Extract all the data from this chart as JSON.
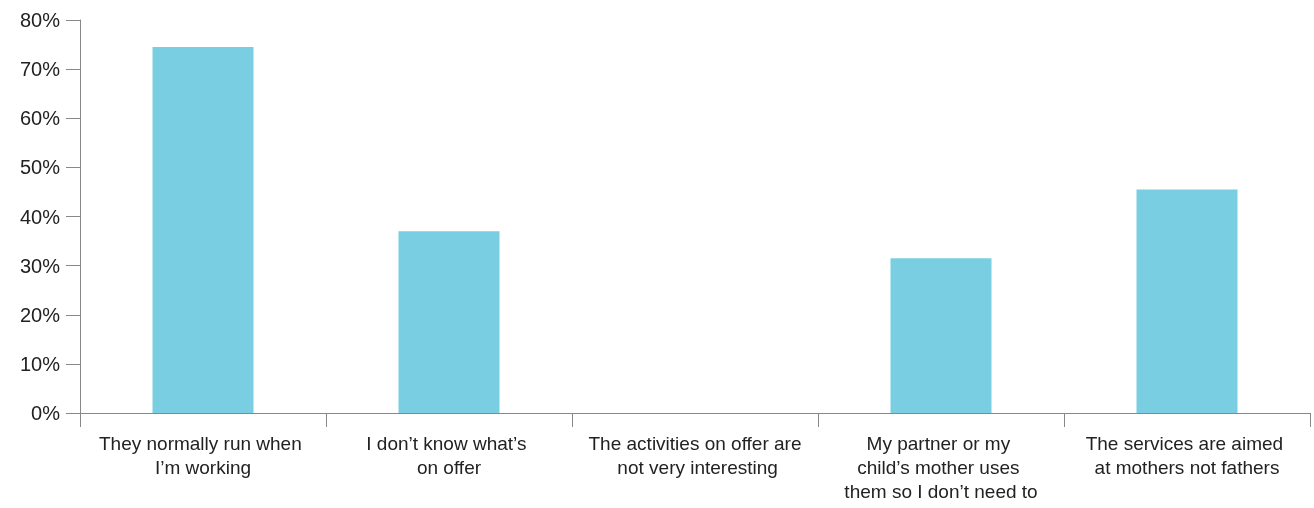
{
  "chart_data": {
    "type": "bar",
    "categories": [
      "They normally run when I’m working",
      "I don’t know what’s on offer",
      "The activities on offer are not very interesting",
      "My partner or my child’s mother uses them so I don’t need to",
      "The services are aimed at mothers not fathers"
    ],
    "values": [
      74.5,
      37,
      0,
      31.5,
      45.5
    ],
    "color": "#79cfe1",
    "ylim": [
      0,
      80
    ],
    "yticks": [
      {
        "value": 0,
        "label": "0%"
      },
      {
        "value": 10,
        "label": "10%"
      },
      {
        "value": 20,
        "label": "20%"
      },
      {
        "value": 30,
        "label": "30%"
      },
      {
        "value": 40,
        "label": "40%"
      },
      {
        "value": 50,
        "label": "50%"
      },
      {
        "value": 60,
        "label": "60%"
      },
      {
        "value": 70,
        "label": "70%"
      },
      {
        "value": 80,
        "label": "80%"
      }
    ],
    "grid": false
  }
}
